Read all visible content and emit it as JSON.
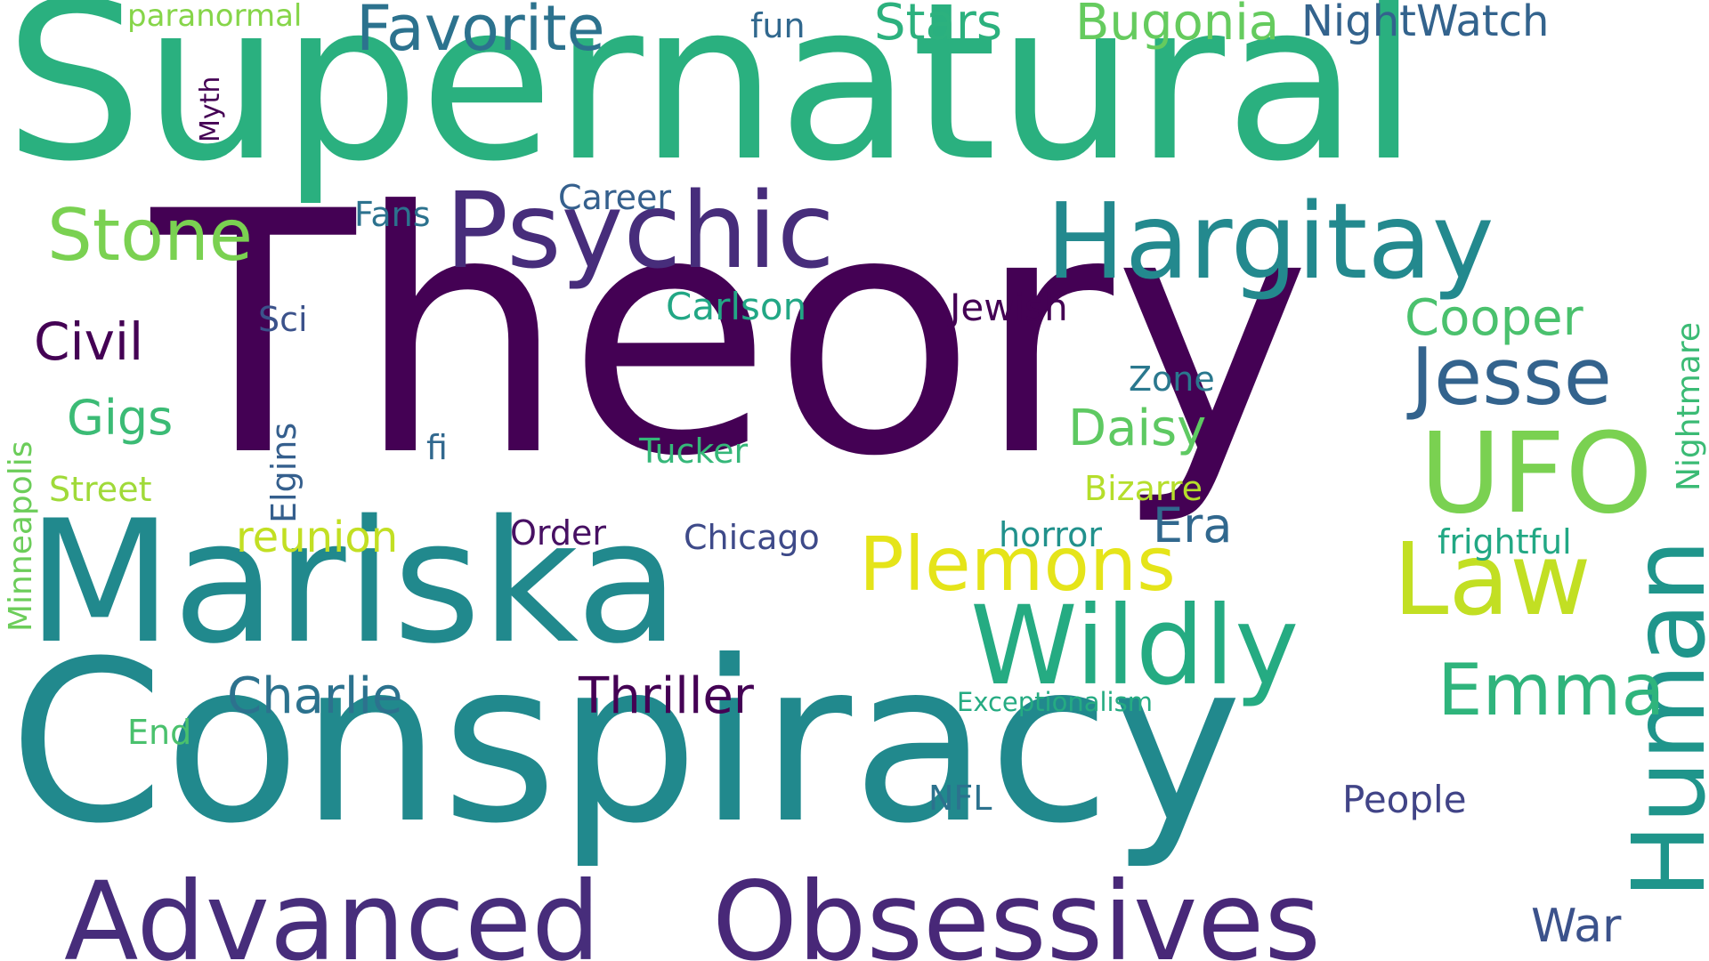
{
  "background_color": "#ffffff",
  "words": [
    {
      "key": "supernatural",
      "text": "Supernatural",
      "color": "#2ab07f"
    },
    {
      "key": "theory",
      "text": "Theory",
      "color": "#440154"
    },
    {
      "key": "mariska",
      "text": "Mariska",
      "color": "#21898d"
    },
    {
      "key": "conspiracy",
      "text": "Conspiracy",
      "color": "#21898d"
    },
    {
      "key": "psychic",
      "text": "Psychic",
      "color": "#472d7b"
    },
    {
      "key": "hargitay",
      "text": "Hargitay",
      "color": "#23898e"
    },
    {
      "key": "advanced",
      "text": "Advanced",
      "color": "#472d7b"
    },
    {
      "key": "obsessives",
      "text": "Obsessives",
      "color": "#482878"
    },
    {
      "key": "wildly",
      "text": "Wildly",
      "color": "#25ab82"
    },
    {
      "key": "ufo",
      "text": "UFO",
      "color": "#7ad151"
    },
    {
      "key": "law",
      "text": "Law",
      "color": "#c2df23"
    },
    {
      "key": "human",
      "text": "Human",
      "color": "#1f958b"
    },
    {
      "key": "plemons",
      "text": "Plemons",
      "color": "#e5e419"
    },
    {
      "key": "jesse",
      "text": "Jesse",
      "color": "#33638d"
    },
    {
      "key": "emma",
      "text": "Emma",
      "color": "#2fb47c"
    },
    {
      "key": "stone",
      "text": "Stone",
      "color": "#7ad151"
    },
    {
      "key": "favorite",
      "text": "Favorite",
      "color": "#2c728e"
    },
    {
      "key": "stars",
      "text": "Stars",
      "color": "#2cb17e"
    },
    {
      "key": "bugonia",
      "text": "Bugonia",
      "color": "#65cb5e"
    },
    {
      "key": "nightwatch",
      "text": "NightWatch",
      "color": "#33638d"
    },
    {
      "key": "cooper",
      "text": "Cooper",
      "color": "#4ac16d"
    },
    {
      "key": "daisy",
      "text": "Daisy",
      "color": "#5ec962"
    },
    {
      "key": "era",
      "text": "Era",
      "color": "#31688e"
    },
    {
      "key": "charlie",
      "text": "Charlie",
      "color": "#2c728e"
    },
    {
      "key": "thriller",
      "text": "Thriller",
      "color": "#440154"
    },
    {
      "key": "civil",
      "text": "Civil",
      "color": "#440154"
    },
    {
      "key": "gigs",
      "text": "Gigs",
      "color": "#3bbb75"
    },
    {
      "key": "reunion",
      "text": "reunion",
      "color": "#c2df23"
    },
    {
      "key": "war",
      "text": "War",
      "color": "#3b528b"
    },
    {
      "key": "paranormal",
      "text": "paranormal",
      "color": "#86d549"
    },
    {
      "key": "fun",
      "text": "fun",
      "color": "#31688e"
    },
    {
      "key": "career",
      "text": "Career",
      "color": "#35608d"
    },
    {
      "key": "fans",
      "text": "Fans",
      "color": "#2c728e"
    },
    {
      "key": "carlson",
      "text": "Carlson",
      "color": "#22a785"
    },
    {
      "key": "jewish",
      "text": "Jewish",
      "color": "#440154"
    },
    {
      "key": "sci",
      "text": "Sci",
      "color": "#3b528b"
    },
    {
      "key": "zone",
      "text": "Zone",
      "color": "#2a788e"
    },
    {
      "key": "fi",
      "text": "fi",
      "color": "#31688e"
    },
    {
      "key": "tucker",
      "text": "Tucker",
      "color": "#35b779"
    },
    {
      "key": "bizarre",
      "text": "Bizarre",
      "color": "#b5de2b"
    },
    {
      "key": "street",
      "text": "Street",
      "color": "#a0da39"
    },
    {
      "key": "order",
      "text": "Order",
      "color": "#471063"
    },
    {
      "key": "chicago",
      "text": "Chicago",
      "color": "#3e4a89"
    },
    {
      "key": "horror",
      "text": "horror",
      "color": "#21918c"
    },
    {
      "key": "frightful",
      "text": "frightful",
      "color": "#22a884"
    },
    {
      "key": "exceptionalism",
      "text": "Exceptionalism",
      "color": "#25ab82"
    },
    {
      "key": "end",
      "text": "End",
      "color": "#4ac16d"
    },
    {
      "key": "nfl",
      "text": "NFL",
      "color": "#2c728e"
    },
    {
      "key": "people",
      "text": "People",
      "color": "#414487"
    },
    {
      "key": "myth",
      "text": "Myth",
      "color": "#440154"
    },
    {
      "key": "elgins",
      "text": "Elgins",
      "color": "#355f8d"
    },
    {
      "key": "minneapolis",
      "text": "Minneapolis",
      "color": "#6ccd5a"
    },
    {
      "key": "nightmare",
      "text": "Nightmare",
      "color": "#3bbb75"
    }
  ]
}
